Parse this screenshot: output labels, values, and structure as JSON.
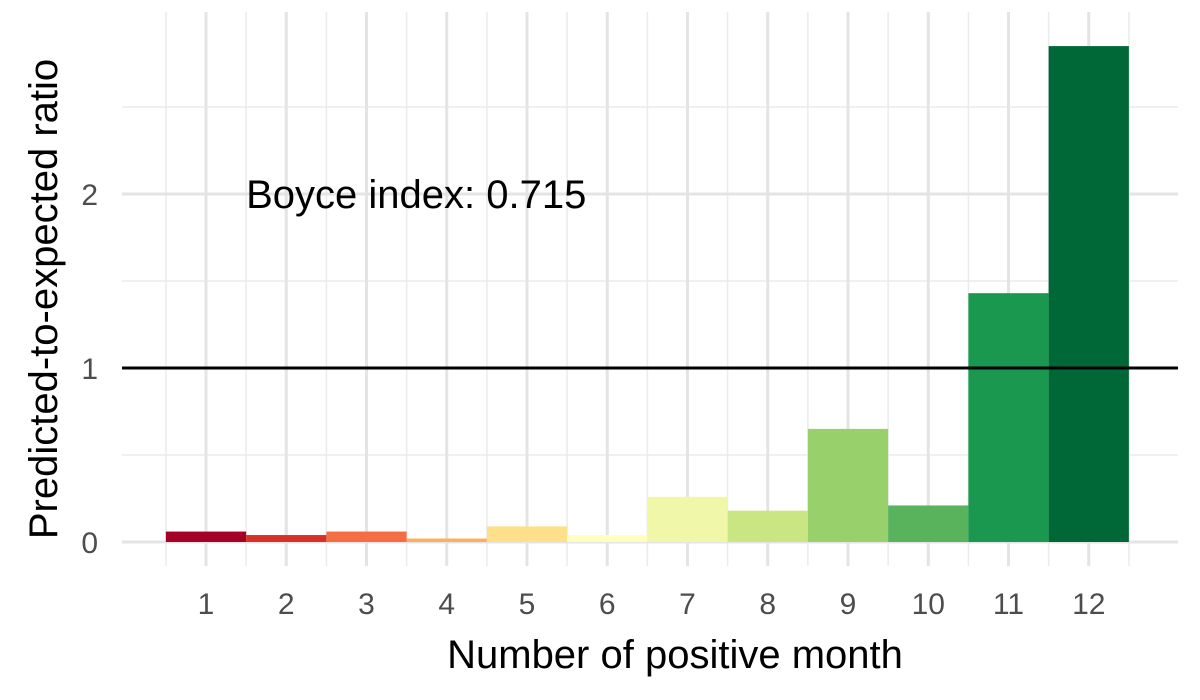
{
  "chart_data": {
    "type": "bar",
    "title": "",
    "xlabel": "Number of positive month",
    "ylabel": "Predicted-to-expected ratio",
    "categories": [
      "1",
      "2",
      "3",
      "4",
      "5",
      "6",
      "7",
      "8",
      "9",
      "10",
      "11",
      "12"
    ],
    "values": [
      0.06,
      0.04,
      0.06,
      0.02,
      0.09,
      0.04,
      0.26,
      0.18,
      0.65,
      0.21,
      1.43,
      2.85
    ],
    "colors": [
      "#a50026",
      "#d73027",
      "#f46d43",
      "#fdae61",
      "#fee08b",
      "#ffffbf",
      "#f1f7a8",
      "#c9e682",
      "#98d06b",
      "#59b35d",
      "#1a9850",
      "#006837"
    ],
    "ylim": [
      0,
      2.9
    ],
    "yticks": [
      0,
      1,
      2
    ],
    "grid": true,
    "legend": "none",
    "reference_line": {
      "y": 1,
      "color": "#000000"
    },
    "annotation": {
      "text": "Boyce index: 0.715",
      "x": 1.5,
      "y": 2.0
    }
  }
}
